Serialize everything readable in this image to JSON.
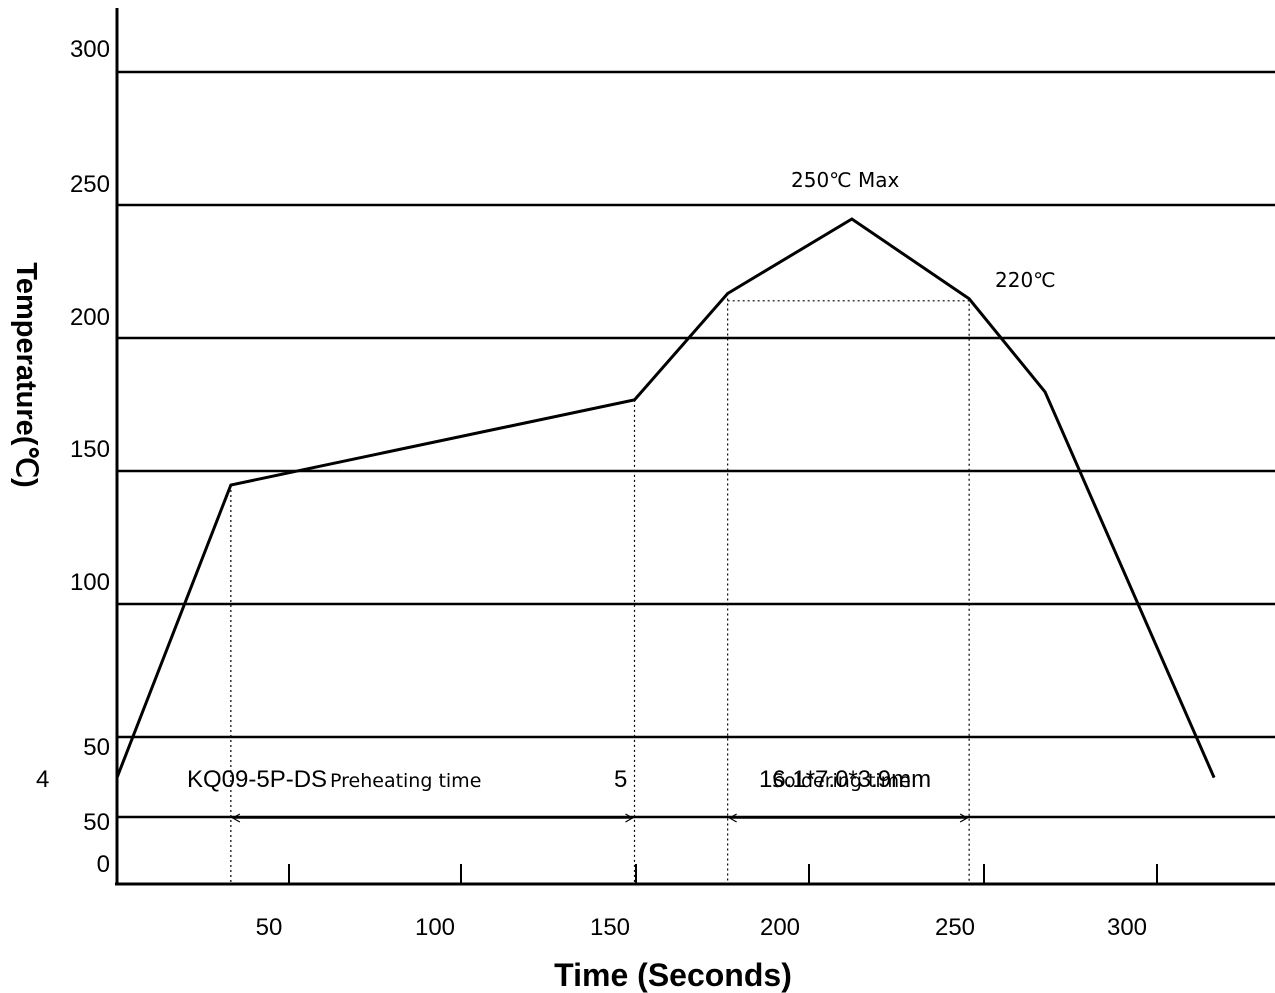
{
  "chart_data": {
    "type": "line",
    "title": "",
    "xlabel": "Time (Seconds)",
    "ylabel": "Temperature(℃)",
    "x_ticks": [
      "50",
      "100",
      "150",
      "200",
      "250",
      "300"
    ],
    "y_ticks": [
      "0",
      "50",
      "50",
      "100",
      "150",
      "200",
      "250",
      "300"
    ],
    "extra_left_label": "4",
    "series": [
      {
        "points": [
          {
            "x": 0,
            "y": 40
          },
          {
            "x": 33,
            "y": 150
          },
          {
            "x": 150,
            "y": 182
          },
          {
            "x": 177,
            "y": 222
          },
          {
            "x": 213,
            "y": 250
          },
          {
            "x": 247,
            "y": 220
          },
          {
            "x": 269,
            "y": 185
          },
          {
            "x": 318,
            "y": 40
          }
        ]
      }
    ],
    "annotations": {
      "peak": "250℃ Max",
      "level_220": "220℃",
      "preheating": "Preheating time",
      "soldering": "Soldering time",
      "part_number": "KQ09-5P-DS",
      "dimension": "16.1*7.0*3.9mm",
      "five": "5"
    },
    "grid": "horizontal"
  }
}
